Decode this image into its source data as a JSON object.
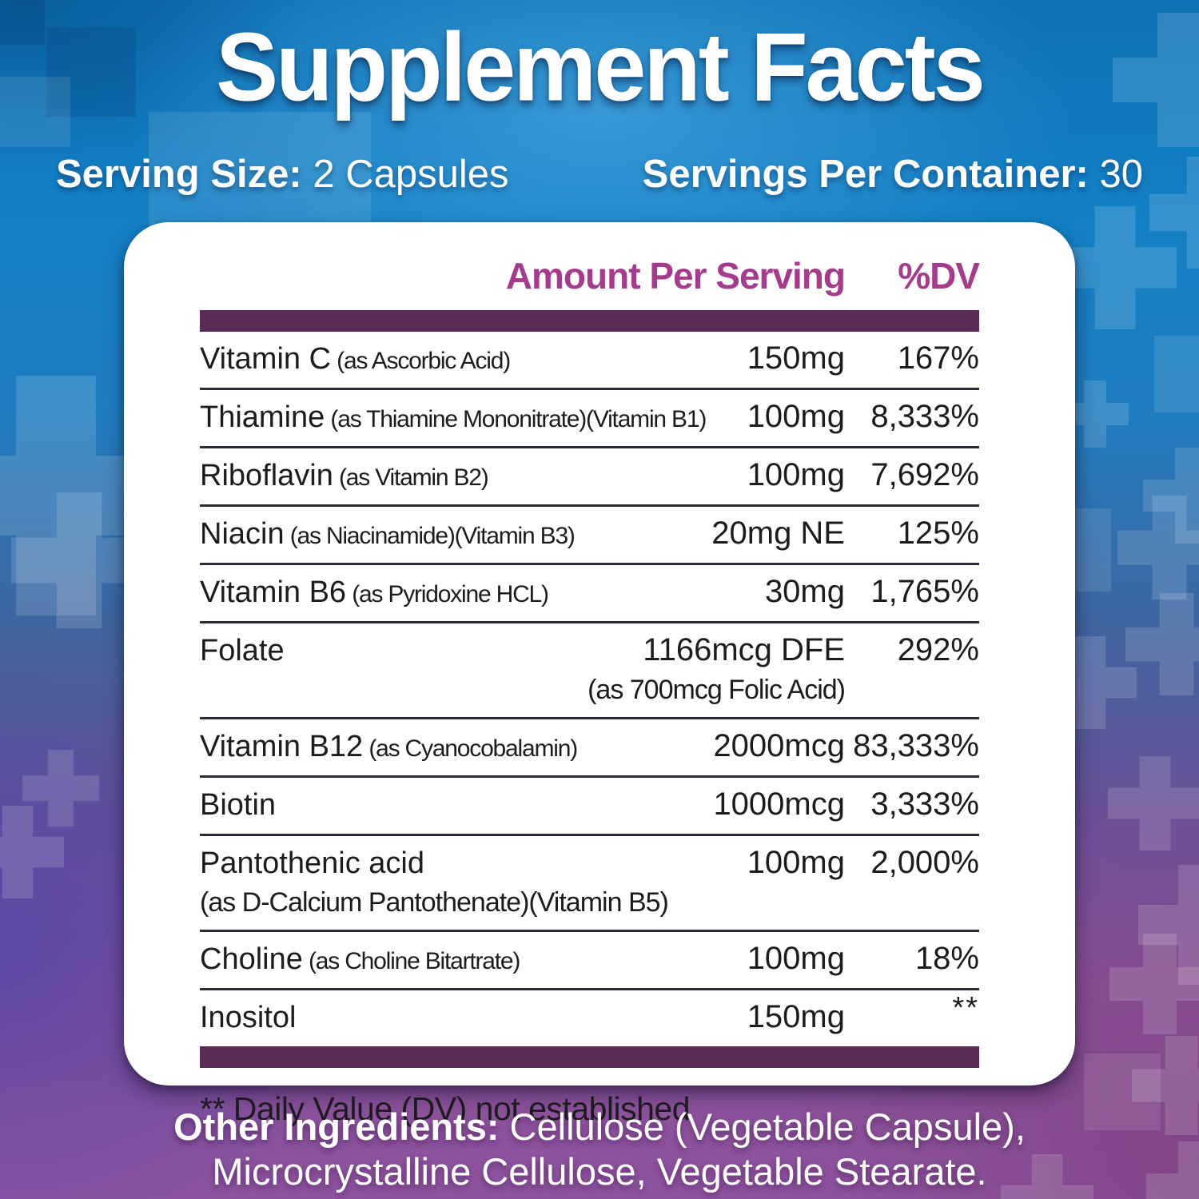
{
  "title": "Supplement Facts",
  "serving": {
    "size_label": "Serving Size:",
    "size_value": "2 Capsules",
    "container_label": "Servings Per Container:",
    "container_value": "30"
  },
  "table": {
    "header": {
      "amount": "Amount Per Serving",
      "dv": "%DV"
    },
    "rows": [
      {
        "name": "Vitamin C",
        "detail": "(as Ascorbic Acid)",
        "amount": "150mg",
        "dv": "167%"
      },
      {
        "name": "Thiamine",
        "detail": "(as Thiamine Mononitrate)(Vitamin B1)",
        "amount": "100mg",
        "dv": "8,333%"
      },
      {
        "name": "Riboflavin",
        "detail": "(as Vitamin B2)",
        "amount": "100mg",
        "dv": "7,692%"
      },
      {
        "name": "Niacin",
        "detail": "(as Niacinamide)(Vitamin B3)",
        "amount": "20mg NE",
        "dv": "125%"
      },
      {
        "name": "Vitamin B6",
        "detail": "(as Pyridoxine HCL)",
        "amount": "30mg",
        "dv": "1,765%"
      },
      {
        "name": "Folate",
        "detail": "",
        "amount": "1166mcg DFE",
        "dv": "292%",
        "amount_note": "(as 700mcg Folic Acid)"
      },
      {
        "name": "Vitamin B12",
        "detail": "(as Cyanocobalamin)",
        "amount": "2000mcg",
        "dv": "83,333%"
      },
      {
        "name": "Biotin",
        "detail": "",
        "amount": "1000mcg",
        "dv": "3,333%"
      },
      {
        "name": "Pantothenic acid",
        "detail": "",
        "amount": "100mg",
        "dv": "2,000%",
        "name_note": "(as D-Calcium Pantothenate)(Vitamin B5)"
      },
      {
        "name": "Choline",
        "detail": "(as Choline Bitartrate)",
        "amount": "100mg",
        "dv": "18%"
      },
      {
        "name": "Inositol",
        "detail": "",
        "amount": "150mg",
        "dv": "**",
        "dv_star": true
      }
    ],
    "footnote": "** Daily Value (DV) not established"
  },
  "other_ingredients": {
    "label": "Other Ingredients:",
    "text": " Cellulose (Vegetable Capsule), Microcrystalline Cellulose, Vegetable Stearate."
  },
  "colors": {
    "header_accent": "#a53b8c",
    "separator_bar": "#5c2b55",
    "row_divider": "#302a36",
    "panel_background": "#ffffff",
    "text": "#1d1b20",
    "background_top": "#1380c5",
    "background_bottom": "#8f54a0"
  }
}
